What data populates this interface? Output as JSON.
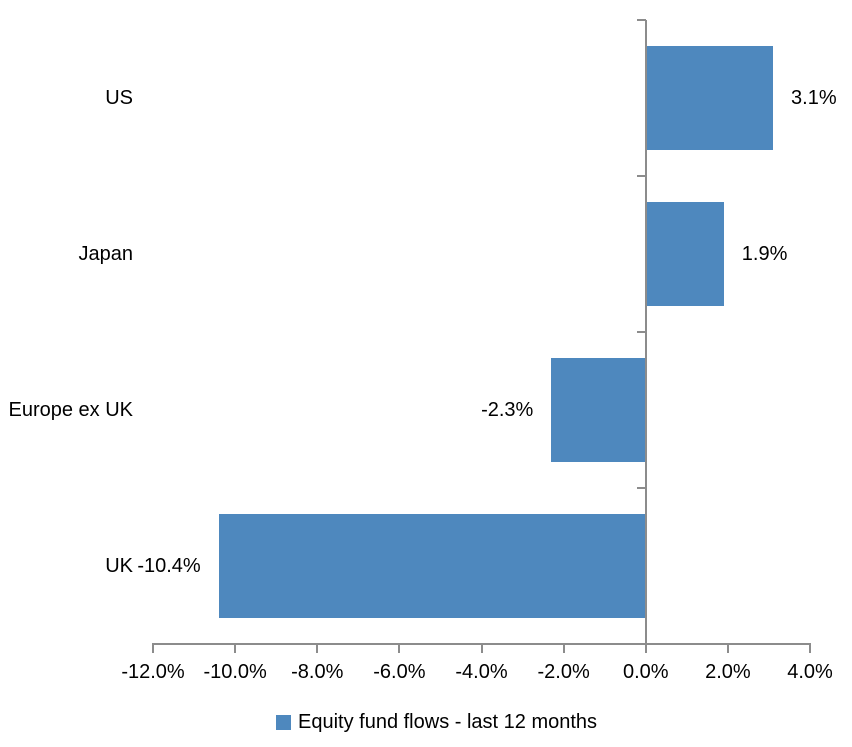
{
  "chart_data": {
    "type": "bar",
    "orientation": "horizontal",
    "title": "",
    "xlabel": "",
    "ylabel": "",
    "categories": [
      "US",
      "Japan",
      "Europe ex UK",
      "UK"
    ],
    "series": [
      {
        "name": "Equity fund flows - last 12 months",
        "values": [
          3.1,
          1.9,
          -2.3,
          -10.4
        ],
        "value_labels": [
          "3.1%",
          "1.9%",
          "-2.3%",
          "-10.4%"
        ]
      }
    ],
    "xlim": [
      -12,
      4
    ],
    "x_tick_values": [
      -12,
      -10,
      -8,
      -6,
      -4,
      -2,
      0,
      2,
      4
    ],
    "x_tick_labels": [
      "-12.0%",
      "-10.0%",
      "-8.0%",
      "-6.0%",
      "-4.0%",
      "-2.0%",
      "0.0%",
      "2.0%",
      "4.0%"
    ],
    "grid": false,
    "legend_position": "bottom",
    "colors": {
      "bar": "#4E88BE",
      "axis": "#8C8C8C",
      "text": "#000000",
      "background": "#FFFFFF"
    }
  },
  "legend": {
    "items": [
      {
        "label": "Equity fund flows - last 12 months",
        "color": "#4E88BE"
      }
    ]
  }
}
